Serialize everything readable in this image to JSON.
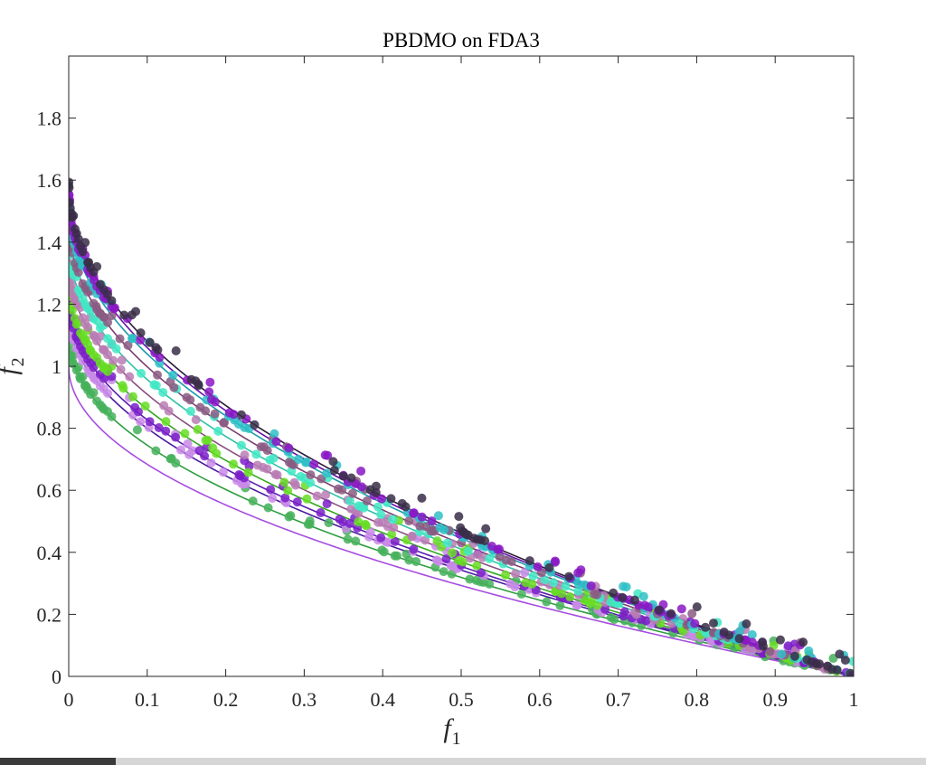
{
  "chart_data": {
    "type": "scatter",
    "title": "PBDMO on FDA3",
    "xlabel": "f",
    "xlabel_sub": "1",
    "ylabel": "f",
    "ylabel_sub": "2",
    "xlim": [
      0,
      1
    ],
    "ylim": [
      0,
      2
    ],
    "xticks": [
      "0",
      "0.1",
      "0.2",
      "0.3",
      "0.4",
      "0.5",
      "0.6",
      "0.7",
      "0.8",
      "0.9",
      "1"
    ],
    "yticks": [
      "0",
      "0.2",
      "0.4",
      "0.6",
      "0.8",
      "1",
      "1.2",
      "1.4",
      "1.6",
      "1.8"
    ],
    "grid": false,
    "curve_form": "f2 = (1 + G) * (1 - sqrt(f1))",
    "fronts": [
      {
        "G": 0.0,
        "line_color": "#a64de0",
        "point_color": null,
        "points": false
      },
      {
        "G": 0.09,
        "line_color": "#2e9e3f",
        "point_color": "#45b05a",
        "points": true
      },
      {
        "G": 0.17,
        "line_color": "#4a1aa0",
        "point_color": "#c98ae8",
        "points": true
      },
      {
        "G": 0.21,
        "line_color": "#5a1fb0",
        "point_color": "#7a1fc8",
        "points": true
      },
      {
        "G": 0.26,
        "line_color": "#33a820",
        "point_color": "#66dd22",
        "points": true
      },
      {
        "G": 0.33,
        "line_color": "#8a4f82",
        "point_color": "#b87cb4",
        "points": true
      },
      {
        "G": 0.4,
        "line_color": "#2fc2a6",
        "point_color": "#40e8c4",
        "points": true
      },
      {
        "G": 0.46,
        "line_color": "#7a3e6e",
        "point_color": "#8a5a82",
        "points": true
      },
      {
        "G": 0.52,
        "line_color": "#1a9aa8",
        "point_color": "#2ebfc7",
        "points": true
      },
      {
        "G": 0.55,
        "line_color": "#6a0fa8",
        "point_color": "#8a18c6",
        "points": true
      },
      {
        "G": 0.58,
        "line_color": "#2a1a3a",
        "point_color": "#3a2e48",
        "points": true
      }
    ],
    "colors": {
      "axis": "#262626",
      "background": "#ffffff"
    }
  }
}
